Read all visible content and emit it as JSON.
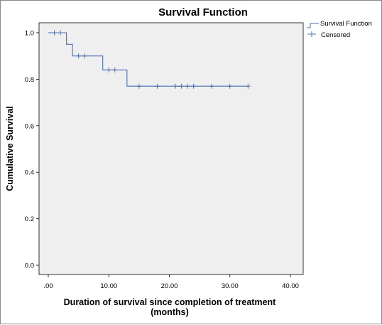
{
  "chart_data": {
    "type": "line",
    "title": "Survival Function",
    "xlabel_line1": "Duration of survival since completion of treatment",
    "xlabel_line2": "(months)",
    "ylabel": "Cumulative Survival",
    "xlim": [
      0,
      40
    ],
    "ylim": [
      0,
      1.0
    ],
    "x_ticks": [
      0,
      10,
      20,
      30,
      40
    ],
    "x_tick_labels": [
      ".00",
      "10.00",
      "20.00",
      "30.00",
      "40.00"
    ],
    "y_ticks": [
      0,
      0.2,
      0.4,
      0.6,
      0.8,
      1.0
    ],
    "y_tick_labels": [
      "0.0",
      "0.2",
      "0.4",
      "0.6",
      "0.8",
      "1.0"
    ],
    "grid": false,
    "legend_position": "right",
    "series": [
      {
        "name": "Survival Function",
        "color": "#4a6fb0",
        "steps": [
          {
            "x": 0,
            "y": 1.0
          },
          {
            "x": 3,
            "y": 0.95
          },
          {
            "x": 4,
            "y": 0.9
          },
          {
            "x": 9,
            "y": 0.84
          },
          {
            "x": 13,
            "y": 0.77
          },
          {
            "x": 33,
            "y": 0.77
          }
        ]
      },
      {
        "name": "Censored",
        "color": "#4a6fb0",
        "points": [
          {
            "x": 1,
            "y": 1.0
          },
          {
            "x": 2,
            "y": 1.0
          },
          {
            "x": 5,
            "y": 0.9
          },
          {
            "x": 6,
            "y": 0.9
          },
          {
            "x": 10,
            "y": 0.84
          },
          {
            "x": 11,
            "y": 0.84
          },
          {
            "x": 15,
            "y": 0.77
          },
          {
            "x": 18,
            "y": 0.77
          },
          {
            "x": 21,
            "y": 0.77
          },
          {
            "x": 22,
            "y": 0.77
          },
          {
            "x": 23,
            "y": 0.77
          },
          {
            "x": 24,
            "y": 0.77
          },
          {
            "x": 27,
            "y": 0.77
          },
          {
            "x": 30,
            "y": 0.77
          },
          {
            "x": 33,
            "y": 0.77
          }
        ]
      }
    ],
    "plot_background": "#efefef"
  }
}
